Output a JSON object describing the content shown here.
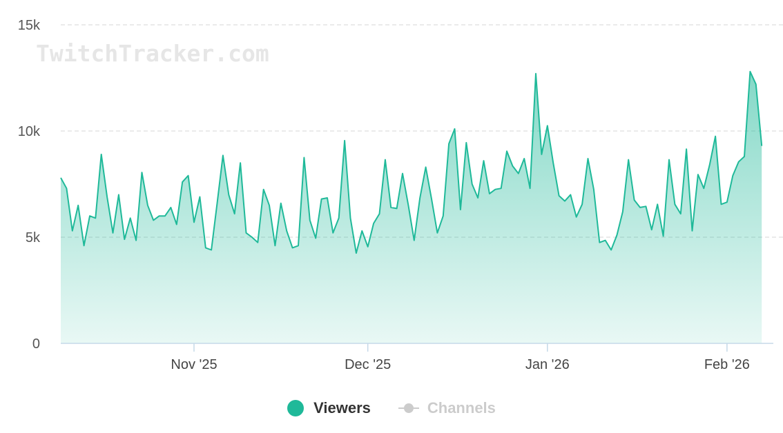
{
  "watermark": "TwitchTracker.com",
  "colors": {
    "viewers": "#1fb999",
    "channels_inactive": "#cccccc",
    "grid": "#dddddd",
    "axis": "#c5d9e8"
  },
  "legend": {
    "viewers_label": "Viewers",
    "channels_label": "Channels"
  },
  "chart_data": {
    "type": "area",
    "title": "",
    "xlabel": "",
    "ylabel": "",
    "ylim": [
      0,
      15000
    ],
    "yticks": [
      0,
      5000,
      10000,
      15000
    ],
    "ytick_labels": [
      "0",
      "5k",
      "10k",
      "15k"
    ],
    "xlim": [
      "2025-10-09",
      "2026-02-09"
    ],
    "xticks": [
      "2025-11-01",
      "2025-12-01",
      "2026-01-01",
      "2026-02-01"
    ],
    "xtick_labels": [
      "Nov '25",
      "Dec '25",
      "Jan '26",
      "Feb '26"
    ],
    "grid": true,
    "legend_position": "bottom-center",
    "series": [
      {
        "name": "Viewers",
        "active": true,
        "start_date": "2025-10-09",
        "interval": "daily",
        "values": [
          7800,
          7300,
          5300,
          6500,
          4600,
          6000,
          5900,
          8900,
          6900,
          5200,
          7000,
          4900,
          5900,
          4850,
          8050,
          6500,
          5800,
          6000,
          6000,
          6400,
          5600,
          7600,
          7900,
          5700,
          6900,
          4500,
          4400,
          6600,
          8850,
          7000,
          6100,
          8500,
          5200,
          5000,
          4750,
          7250,
          6500,
          4600,
          6600,
          5300,
          4500,
          4600,
          8750,
          5800,
          4950,
          6800,
          6850,
          5200,
          5900,
          9550,
          5900,
          4250,
          5300,
          4550,
          5650,
          6100,
          8650,
          6400,
          6350,
          8000,
          6500,
          4850,
          6850,
          8300,
          6800,
          5200,
          6000,
          9400,
          10100,
          6300,
          9450,
          7500,
          6850,
          8600,
          7050,
          7250,
          7300,
          9050,
          8350,
          8000,
          8700,
          7300,
          12700,
          8900,
          10250,
          8500,
          6950,
          6700,
          7000,
          5950,
          6550,
          8700,
          7250,
          4750,
          4850,
          4400,
          5100,
          6200,
          8650,
          6750,
          6400,
          6450,
          5350,
          6550,
          5050,
          8650,
          6550,
          6100,
          9150,
          5300,
          7950,
          7300,
          8400,
          9750,
          6550,
          6650,
          7900,
          8550,
          8800,
          12800,
          12200,
          9300
        ]
      },
      {
        "name": "Channels",
        "active": false,
        "values": []
      }
    ]
  }
}
